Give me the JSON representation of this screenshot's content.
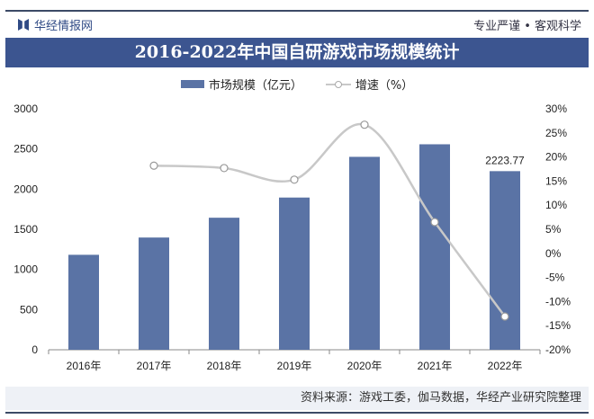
{
  "header": {
    "brand": "华经情报网",
    "slogan": "专业严谨 • 客观科学"
  },
  "footer": {
    "source": "资料来源：游戏工委，伽马数据，华经产业研究院整理"
  },
  "colors": {
    "bar": "#5a73a5",
    "line": "#c8c8c8",
    "title_bg": "#3c5590"
  },
  "chart_data": {
    "type": "bar+line",
    "title": "2016-2022年中国自研游戏市场规模统计",
    "categories": [
      "2016年",
      "2017年",
      "2018年",
      "2019年",
      "2020年",
      "2021年",
      "2022年"
    ],
    "series": [
      {
        "name": "市场规模（亿元）",
        "type": "bar",
        "axis": "left",
        "values": [
          1182.3,
          1397.4,
          1643.9,
          1895.1,
          2401.92,
          2558.19,
          2223.77
        ]
      },
      {
        "name": "增速（%）",
        "type": "line",
        "axis": "right",
        "values": [
          null,
          18.2,
          17.7,
          15.3,
          26.7,
          6.5,
          -13.1
        ]
      }
    ],
    "ylim_left": [
      0,
      3000
    ],
    "yticks_left": [
      "0",
      "500",
      "1000",
      "1500",
      "2000",
      "2500",
      "3000"
    ],
    "ylim_right": [
      -20,
      30
    ],
    "yticks_right": [
      "-20%",
      "-15%",
      "-10%",
      "-5%",
      "0%",
      "5%",
      "10%",
      "15%",
      "20%",
      "25%",
      "30%"
    ],
    "data_labels": [
      {
        "index": 6,
        "text": "2223.77"
      }
    ],
    "grid": false,
    "legend": "top"
  }
}
